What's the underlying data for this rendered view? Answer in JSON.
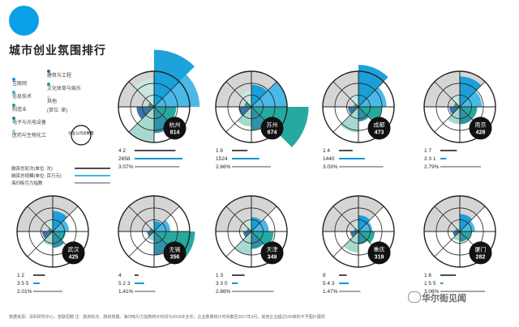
{
  "title": "城市创业氛围排行",
  "legend": {
    "categories": [
      {
        "label": "互联网",
        "color": "#0a9ad8"
      },
      {
        "label": "信息技术",
        "color": "#3bb3e6"
      },
      {
        "label": "制造业",
        "color": "#14a398"
      },
      {
        "label": "电子与光电设备",
        "color": "#1e8aa0"
      },
      {
        "label": "医药与生物化工",
        "color": "#9ed7cc"
      },
      {
        "label": "建筑与工程",
        "color": "#2d6a9a"
      },
      {
        "label": "文化体育与娱乐",
        "color": "#20a090"
      },
      {
        "label": "其他",
        "color": "#c8e8e2"
      }
    ],
    "unit": "(单位: 家)",
    "center_label": "创业公司总数量"
  },
  "metrics_legend": {
    "rounds": "融资总轮次(单位: 次)",
    "amount": "融资总规模(单位: 百万元)",
    "talent": "海归吸引力指数"
  },
  "chart_data": [
    {
      "type": "radial",
      "city": "杭州",
      "total": "814",
      "rounds": "4 2",
      "amount": "2658",
      "talent": "3.07%",
      "sectors": [
        98,
        78,
        38,
        45,
        60,
        30,
        10,
        48
      ]
    },
    {
      "type": "radial",
      "city": "苏州",
      "total": "674",
      "rounds": "1 6",
      "amount": "1524",
      "talent": "2.66%",
      "sectors": [
        38,
        62,
        98,
        40,
        34,
        22,
        12,
        28
      ]
    },
    {
      "type": "radial",
      "city": "成都",
      "total": "473",
      "rounds": "1 4",
      "amount": "1440",
      "talent": "3.03%",
      "sectors": [
        72,
        48,
        40,
        25,
        44,
        18,
        8,
        22
      ]
    },
    {
      "type": "radial",
      "city": "南京",
      "total": "428",
      "rounds": "1 7",
      "amount": "3 3 1",
      "talent": "2.79%",
      "sectors": [
        52,
        38,
        30,
        30,
        30,
        18,
        10,
        20
      ]
    },
    {
      "type": "radial",
      "city": "武汉",
      "total": "425",
      "rounds": "1 2",
      "amount": "3 5 5",
      "talent": "2.01%",
      "sectors": [
        35,
        28,
        22,
        28,
        24,
        18,
        8,
        20
      ]
    },
    {
      "type": "radial",
      "city": "无锡",
      "total": "356",
      "rounds": "4",
      "amount": "5 2 3",
      "talent": "1.41%",
      "sectors": [
        18,
        28,
        70,
        40,
        16,
        12,
        8,
        16
      ]
    },
    {
      "type": "radial",
      "city": "天津",
      "total": "349",
      "rounds": "1 3",
      "amount": "3 3 0",
      "talent": "2.86%",
      "sectors": [
        25,
        30,
        38,
        30,
        40,
        14,
        8,
        18
      ]
    },
    {
      "type": "radial",
      "city": "重庆",
      "total": "319",
      "rounds": "8",
      "amount": "5 4 3",
      "talent": "1.47%",
      "sectors": [
        28,
        24,
        28,
        22,
        36,
        14,
        8,
        16
      ]
    },
    {
      "type": "radial",
      "city": "厦门",
      "total": "282",
      "rounds": "1 6",
      "amount": "1 5 5",
      "talent": "3.06%",
      "sectors": [
        30,
        26,
        20,
        18,
        16,
        12,
        8,
        14
      ]
    }
  ],
  "footer": {
    "source": "数据来源：清科研究中心，智联招聘  注：融资轮次、融资规模、海归吸引力指数统计时间为2016年全年；企业数量统计时间截至2017年3月，其他企业超过100家的不予图片展现"
  },
  "watermark": "华尔街见闻"
}
